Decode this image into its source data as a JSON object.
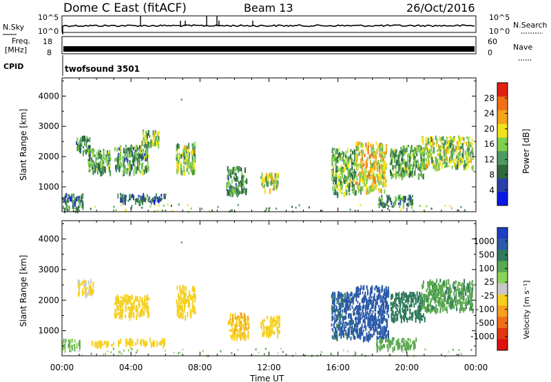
{
  "header": {
    "title": "Dome C East (fitACF)",
    "beam": "Beam 13",
    "date": "26/Oct/2016"
  },
  "status_panels": {
    "nsky": {
      "label": "N.Sky",
      "tick_top": "10^5",
      "tick_bottom": "10^0",
      "right_label": "N.Search",
      "right_tick_top": "10^5",
      "right_tick_bottom": "10^0"
    },
    "freq": {
      "label_line1": "Freq.",
      "label_line2": "[MHz]",
      "tick_top": "18",
      "tick_bottom": "8",
      "right_label": "Nave",
      "right_tick_top": "60",
      "right_tick_bottom": "0"
    },
    "cpid": {
      "label": "CPID",
      "value": "twofsound 3501"
    }
  },
  "colors": {
    "power_scale": [
      "#0a18e6",
      "#2a3fa8",
      "#2f6a3c",
      "#4f9a62",
      "#7fd04a",
      "#f2e21b",
      "#f4a31a",
      "#f07015",
      "#e02010"
    ],
    "velocity_scale": [
      "#1d3fc0",
      "#2b5aa8",
      "#2f7a5c",
      "#5aa84f",
      "#8ad25a",
      "#c8c8c8",
      "#f5d020",
      "#f5a020",
      "#f07018",
      "#e03810",
      "#e01010"
    ]
  },
  "chart_data": [
    {
      "type": "heatmap",
      "name": "power",
      "ylabel": "Slant Range [km]",
      "yticks": [
        "1000",
        "2000",
        "3000",
        "4000"
      ],
      "ylim": [
        180,
        4600
      ],
      "xlim": [
        0,
        24
      ],
      "colorbar": {
        "label": "Power [dB]",
        "ticks": [
          "4",
          "8",
          "12",
          "16",
          "20",
          "24",
          "28"
        ],
        "range": [
          0,
          32
        ]
      },
      "echo_regions": [
        {
          "t0": 0.0,
          "t1": 1.2,
          "r0": 300,
          "r1": 800,
          "level": 10
        },
        {
          "t0": 0.8,
          "t1": 1.6,
          "r0": 2200,
          "r1": 2700,
          "level": 11
        },
        {
          "t0": 1.5,
          "t1": 2.8,
          "r0": 1500,
          "r1": 2300,
          "level": 15
        },
        {
          "t0": 3.0,
          "t1": 5.0,
          "r0": 1500,
          "r1": 2400,
          "level": 14
        },
        {
          "t0": 3.2,
          "t1": 6.0,
          "r0": 550,
          "r1": 800,
          "level": 9
        },
        {
          "t0": 4.6,
          "t1": 5.6,
          "r0": 2400,
          "r1": 2900,
          "level": 17
        },
        {
          "t0": 6.6,
          "t1": 7.7,
          "r0": 1500,
          "r1": 2500,
          "level": 18
        },
        {
          "t0": 9.5,
          "t1": 10.7,
          "r0": 800,
          "r1": 1700,
          "level": 13
        },
        {
          "t0": 11.5,
          "t1": 12.5,
          "r0": 950,
          "r1": 1500,
          "level": 19
        },
        {
          "t0": 15.6,
          "t1": 17.0,
          "r0": 800,
          "r1": 2300,
          "level": 16
        },
        {
          "t0": 17.0,
          "t1": 18.8,
          "r0": 900,
          "r1": 2500,
          "level": 22
        },
        {
          "t0": 18.3,
          "t1": 20.3,
          "r0": 450,
          "r1": 750,
          "level": 13
        },
        {
          "t0": 19.0,
          "t1": 21.0,
          "r0": 1400,
          "r1": 2400,
          "level": 15
        },
        {
          "t0": 20.8,
          "t1": 23.8,
          "r0": 1700,
          "r1": 2700,
          "level": 18
        }
      ]
    },
    {
      "type": "heatmap",
      "name": "velocity",
      "ylabel": "Slant Range [km]",
      "yticks": [
        "1000",
        "2000",
        "3000",
        "4000"
      ],
      "ylim": [
        180,
        4600
      ],
      "xlim": [
        0,
        24
      ],
      "xlabel": "Time UT",
      "xticks": [
        "00:00",
        "04:00",
        "08:00",
        "12:00",
        "16:00",
        "20:00",
        "00:00"
      ],
      "colorbar": {
        "label": "Velocity [m s⁻¹]",
        "ticks": [
          "1000",
          "500",
          "100",
          "25",
          "-25",
          "-100",
          "-500",
          "-1000"
        ]
      },
      "echo_regions": [
        {
          "t0": 0.0,
          "t1": 1.0,
          "r0": 450,
          "r1": 750,
          "velocity": 20
        },
        {
          "t0": 1.5,
          "t1": 3.0,
          "r0": 550,
          "r1": 700,
          "velocity": -150
        },
        {
          "t0": 3.2,
          "t1": 6.0,
          "r0": 600,
          "r1": 780,
          "velocity": -300
        },
        {
          "t0": 0.9,
          "t1": 1.8,
          "r0": 2200,
          "r1": 2700,
          "velocity": -120
        },
        {
          "t0": 3.0,
          "t1": 5.0,
          "r0": 1500,
          "r1": 2200,
          "velocity": -200
        },
        {
          "t0": 6.6,
          "t1": 7.7,
          "r0": 1500,
          "r1": 2500,
          "velocity": -150
        },
        {
          "t0": 9.6,
          "t1": 10.8,
          "r0": 800,
          "r1": 1600,
          "velocity": -450
        },
        {
          "t0": 11.5,
          "t1": 12.6,
          "r0": 900,
          "r1": 1500,
          "velocity": -350
        },
        {
          "t0": 15.6,
          "t1": 17.0,
          "r0": 800,
          "r1": 2300,
          "velocity": 600
        },
        {
          "t0": 17.0,
          "t1": 18.9,
          "r0": 800,
          "r1": 2500,
          "velocity": 750
        },
        {
          "t0": 18.2,
          "t1": 20.5,
          "r0": 450,
          "r1": 800,
          "velocity": 60
        },
        {
          "t0": 19.0,
          "t1": 21.0,
          "r0": 1400,
          "r1": 2300,
          "velocity": 300
        },
        {
          "t0": 20.8,
          "t1": 23.8,
          "r0": 1700,
          "r1": 2700,
          "velocity": 80
        }
      ]
    }
  ]
}
